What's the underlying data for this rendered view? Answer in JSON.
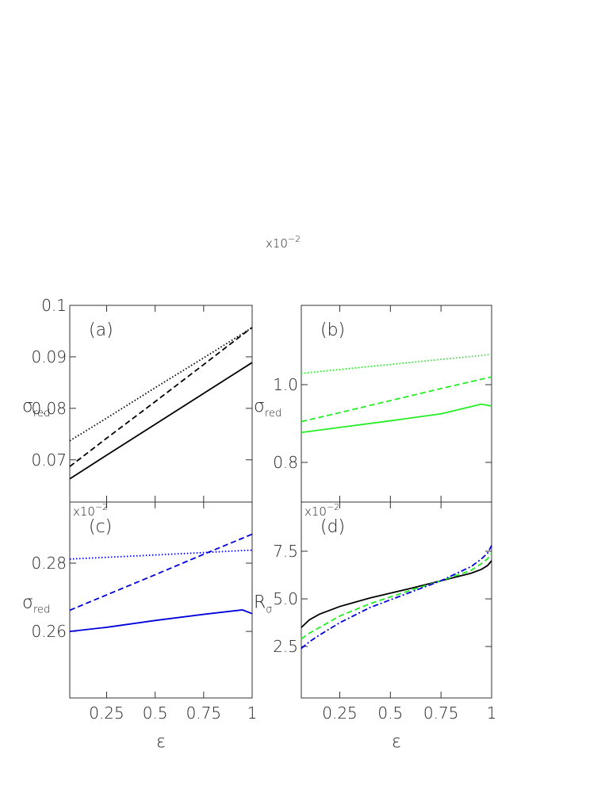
{
  "chart_data": [
    {
      "type": "line",
      "label": "(a)",
      "ylabel": "σ",
      "ylabel_sub": "red",
      "x": [
        0.06,
        0.25,
        0.5,
        0.75,
        0.95,
        1
      ],
      "series": [
        {
          "color": "#000000",
          "dash": "solid",
          "values": [
            0.0663,
            0.0709,
            0.0769,
            0.0829,
            0.0877,
            0.0889
          ]
        },
        {
          "color": "#000000",
          "dash": "dashed",
          "values": [
            0.0687,
            0.0742,
            0.0813,
            0.0885,
            0.0943,
            0.0957
          ]
        },
        {
          "color": "#000000",
          "dash": "dotted",
          "values": [
            0.0737,
            0.0781,
            0.084,
            0.0898,
            0.0945,
            0.0957
          ]
        }
      ],
      "xlim": [
        0.06,
        1
      ],
      "ylim": [
        0.0618,
        0.1
      ],
      "xticks": [
        0.25,
        0.5,
        0.75,
        1
      ],
      "yticks": [
        0.07,
        0.08,
        0.09,
        0.1
      ]
    },
    {
      "type": "line",
      "label": "(b)",
      "ylabel": "σ",
      "ylabel_sub": "red",
      "multiplier": "x10",
      "multiplier_exp": "−2",
      "x": [
        0.06,
        0.25,
        0.5,
        0.75,
        0.95,
        1
      ],
      "series": [
        {
          "color": "#22ee22",
          "dash": "solid",
          "values": [
            0.877,
            0.89,
            0.907,
            0.925,
            0.95,
            0.945
          ]
        },
        {
          "color": "#22ee22",
          "dash": "dashed",
          "values": [
            0.905,
            0.928,
            0.959,
            0.99,
            1.014,
            1.02
          ]
        },
        {
          "color": "#22ee22",
          "dash": "dotted",
          "values": [
            1.029,
            1.039,
            1.052,
            1.065,
            1.075,
            1.078
          ]
        }
      ],
      "xlim": [
        0.06,
        1
      ],
      "ylim": [
        0.698,
        1.204
      ],
      "xticks": [
        0.25,
        0.5,
        0.75,
        1
      ],
      "yticks": [
        0.8,
        {
          "value": 1,
          "label": "1.0"
        }
      ]
    },
    {
      "type": "line",
      "label": "(c)",
      "ylabel": "σ",
      "ylabel_sub": "red",
      "xlabel": "ε",
      "multiplier": "x10",
      "multiplier_exp": "−2",
      "x": [
        0.06,
        0.25,
        0.5,
        0.75,
        0.95,
        1
      ],
      "series": [
        {
          "color": "#0000dd",
          "dash": "solid",
          "values": [
            0.26,
            0.2612,
            0.2632,
            0.265,
            0.2663,
            0.2652
          ]
        },
        {
          "color": "#0000dd",
          "dash": "dashed",
          "values": [
            0.2662,
            0.2707,
            0.2766,
            0.2826,
            0.2873,
            0.2885
          ]
        },
        {
          "color": "#0000dd",
          "dash": "dotted",
          "values": [
            0.2812,
            0.2817,
            0.2824,
            0.2831,
            0.2837,
            0.2838
          ]
        }
      ],
      "xlim": [
        0.06,
        1
      ],
      "ylim": [
        0.2405,
        0.2979
      ],
      "xticks": [
        0.25,
        0.5,
        0.75,
        1
      ],
      "yticks": [
        0.26,
        0.28
      ]
    },
    {
      "type": "line",
      "label": "(d)",
      "ylabel": "R",
      "ylabel_sub": "σ",
      "xlabel": "ε",
      "multiplier": "x10",
      "multiplier_exp": "−2",
      "x": [
        0.06,
        0.1,
        0.15,
        0.25,
        0.4,
        0.5,
        0.6,
        0.75,
        0.9,
        0.95,
        0.98,
        1
      ],
      "series": [
        {
          "color": "#000000",
          "dash": "solid",
          "values": [
            3.5,
            3.9,
            4.2,
            4.6,
            5.05,
            5.3,
            5.55,
            5.95,
            6.35,
            6.55,
            6.75,
            7.0
          ]
        },
        {
          "color": "#22ee22",
          "dash": "dashed",
          "values": [
            2.9,
            3.2,
            3.5,
            4.1,
            4.75,
            5.1,
            5.45,
            5.95,
            6.5,
            6.85,
            7.1,
            7.4
          ]
        },
        {
          "color": "#0000dd",
          "dash": "dashdot",
          "values": [
            2.4,
            2.75,
            3.1,
            3.75,
            4.55,
            4.95,
            5.35,
            5.95,
            6.7,
            7.1,
            7.4,
            7.8
          ]
        }
      ],
      "xlim": [
        0.06,
        1
      ],
      "ylim": [
        -0.2,
        10.08
      ],
      "xticks": [
        0.25,
        0.5,
        0.75,
        1
      ],
      "yticks": [
        {
          "value": 2.5,
          "label": "2.5"
        },
        {
          "value": 5,
          "label": "5.0"
        },
        7.5
      ]
    }
  ]
}
